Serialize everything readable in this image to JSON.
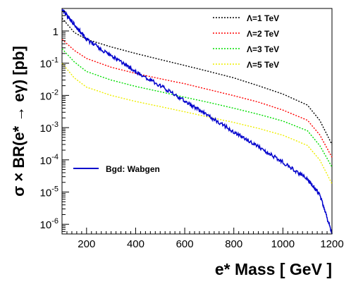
{
  "chart_data": {
    "type": "line",
    "xlabel": "e* Mass [ GeV ]",
    "ylabel": "σ × BR(e* → eγ) [pb]",
    "xlim": [
      100,
      1200
    ],
    "ylim": [
      5e-07,
      5
    ],
    "yscale": "log",
    "grid": false,
    "legend_top": {
      "placement": "top-right",
      "entries": [
        {
          "label": "Λ=1 TeV",
          "color": "#000000",
          "style": "dotted"
        },
        {
          "label": "Λ=2 TeV",
          "color": "#ff0000",
          "style": "dotted"
        },
        {
          "label": "Λ=3 TeV",
          "color": "#00dd00",
          "style": "dotted"
        },
        {
          "label": "Λ=5 TeV",
          "color": "#eeee00",
          "style": "dotted"
        }
      ]
    },
    "legend_bottom": {
      "placement": "middle-left",
      "entries": [
        {
          "label": "Bgd: Wabgen",
          "color": "#0000cc",
          "style": "solid"
        }
      ]
    },
    "x_ticks": [
      200,
      400,
      600,
      800,
      1000,
      1200
    ],
    "x_tick_labels": [
      "200",
      "400",
      "600",
      "800",
      "1000",
      "1200"
    ],
    "y_ticks": [
      {
        "value": 1,
        "base": "1",
        "exp": ""
      },
      {
        "value": 0.1,
        "base": "10",
        "exp": "-1"
      },
      {
        "value": 0.01,
        "base": "10",
        "exp": "-2"
      },
      {
        "value": 0.001,
        "base": "10",
        "exp": "-3"
      },
      {
        "value": 0.0001,
        "base": "10",
        "exp": "-4"
      },
      {
        "value": 1e-05,
        "base": "10",
        "exp": "-5"
      },
      {
        "value": 1e-06,
        "base": "10",
        "exp": "-6"
      }
    ],
    "x": [
      100,
      150,
      200,
      300,
      400,
      500,
      600,
      700,
      800,
      900,
      1000,
      1100,
      1150,
      1200
    ],
    "series": [
      {
        "name": "Λ=1 TeV",
        "color": "#000000",
        "style": "dotted",
        "values": [
          2.5,
          0.9,
          0.55,
          0.32,
          0.2,
          0.13,
          0.085,
          0.055,
          0.035,
          0.02,
          0.011,
          0.005,
          0.0017,
          0.0003
        ]
      },
      {
        "name": "Λ=2 TeV",
        "color": "#ff0000",
        "style": "dotted",
        "values": [
          0.55,
          0.25,
          0.14,
          0.075,
          0.048,
          0.033,
          0.023,
          0.015,
          0.0098,
          0.0062,
          0.0035,
          0.0017,
          0.0006,
          0.00012
        ]
      },
      {
        "name": "Λ=3 TeV",
        "color": "#00dd00",
        "style": "dotted",
        "values": [
          0.28,
          0.11,
          0.055,
          0.03,
          0.019,
          0.013,
          0.0088,
          0.006,
          0.004,
          0.0026,
          0.0016,
          0.0008,
          0.00028,
          6e-05
        ]
      },
      {
        "name": "Λ=5 TeV",
        "color": "#eeee00",
        "style": "dotted",
        "values": [
          0.1,
          0.035,
          0.018,
          0.01,
          0.0065,
          0.0045,
          0.0031,
          0.0021,
          0.00145,
          0.00095,
          0.00058,
          0.00028,
          0.0001,
          1.8e-05
        ]
      },
      {
        "name": "Bgd: Wabgen",
        "color": "#0000cc",
        "style": "solid",
        "values": [
          4.5,
          1.6,
          0.55,
          0.17,
          0.055,
          0.02,
          0.0068,
          0.0022,
          0.00075,
          0.00026,
          8.5e-05,
          2.5e-05,
          8.5e-06,
          5e-07
        ]
      }
    ]
  }
}
